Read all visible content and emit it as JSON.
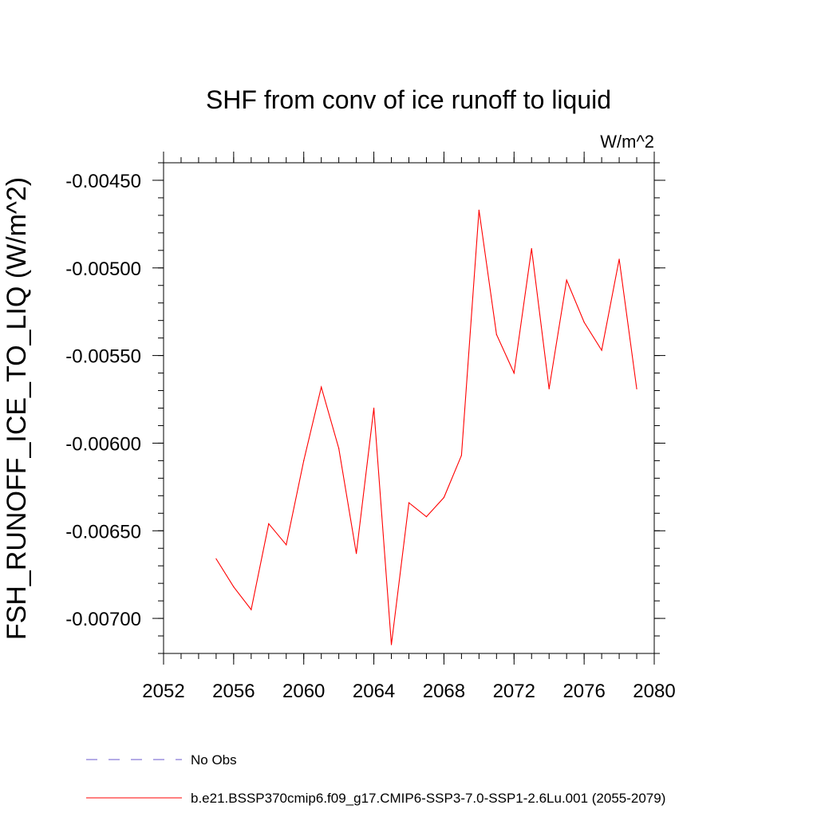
{
  "chart_data": {
    "type": "line",
    "title": "SHF from conv of ice runoff to liquid",
    "units": "W/m^2",
    "xlabel": "",
    "ylabel": "FSH_RUNOFF_ICE_TO_LIQ  (W/m^2)",
    "xlim": [
      2052,
      2080
    ],
    "ylim": [
      -0.0072,
      -0.0044
    ],
    "x_ticks": [
      2052,
      2056,
      2060,
      2064,
      2068,
      2072,
      2076,
      2080
    ],
    "x_tick_labels": [
      "2052",
      "2056",
      "2060",
      "2064",
      "2068",
      "2072",
      "2076",
      "2080"
    ],
    "y_ticks": [
      -0.0045,
      -0.005,
      -0.0055,
      -0.006,
      -0.0065,
      -0.007
    ],
    "y_tick_labels": [
      "-0.00450",
      "-0.00500",
      "-0.00550",
      "-0.00600",
      "-0.00650",
      "-0.00700"
    ],
    "grid": false,
    "legend_placement": "bottom",
    "legend": [
      {
        "label": "No Obs",
        "color": "#6a5acd",
        "style": "dashed"
      },
      {
        "label": "b.e21.BSSP370cmip6.f09_g17.CMIP6-SSP3-7.0-SSP1-2.6Lu.001 (2055-2079)",
        "color": "#ff0000",
        "style": "solid"
      }
    ],
    "series": [
      {
        "color": "#ff0000",
        "x": [
          2055,
          2056,
          2057,
          2058,
          2059,
          2060,
          2061,
          2062,
          2063,
          2064,
          2065,
          2066,
          2067,
          2068,
          2069,
          2070,
          2071,
          2072,
          2073,
          2074,
          2075,
          2076,
          2077,
          2078,
          2079
        ],
        "y": [
          -0.00666,
          -0.00682,
          -0.00695,
          -0.00646,
          -0.00658,
          -0.0061,
          -0.00568,
          -0.00603,
          -0.00663,
          -0.0058,
          -0.00715,
          -0.00634,
          -0.00642,
          -0.00631,
          -0.00607,
          -0.00467,
          -0.00538,
          -0.0056,
          -0.00489,
          -0.00569,
          -0.00507,
          -0.00531,
          -0.00547,
          -0.00495,
          -0.00569
        ]
      }
    ]
  }
}
